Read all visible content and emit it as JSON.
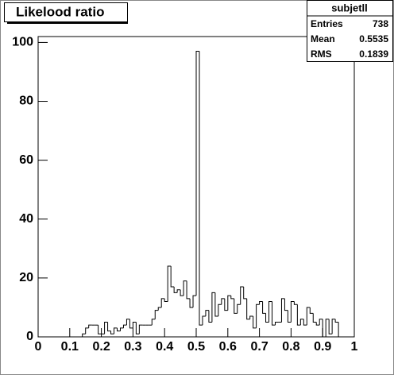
{
  "chart_data": {
    "type": "histogram",
    "title": "Likelood ratio",
    "bins": [
      0,
      0.01,
      0.02,
      0.03,
      0.04,
      0.05,
      0.06,
      0.07,
      0.08,
      0.09,
      0.1,
      0.11,
      0.12,
      0.13,
      0.14,
      0.15,
      0.16,
      0.17,
      0.18,
      0.19,
      0.2,
      0.21,
      0.22,
      0.23,
      0.24,
      0.25,
      0.26,
      0.27,
      0.28,
      0.29,
      0.3,
      0.31,
      0.32,
      0.33,
      0.34,
      0.35,
      0.36,
      0.37,
      0.38,
      0.39,
      0.4,
      0.41,
      0.42,
      0.43,
      0.44,
      0.45,
      0.46,
      0.47,
      0.48,
      0.49,
      0.5,
      0.51,
      0.52,
      0.53,
      0.54,
      0.55,
      0.56,
      0.57,
      0.58,
      0.59,
      0.6,
      0.61,
      0.62,
      0.63,
      0.64,
      0.65,
      0.66,
      0.67,
      0.68,
      0.69,
      0.7,
      0.71,
      0.72,
      0.73,
      0.74,
      0.75,
      0.76,
      0.77,
      0.78,
      0.79,
      0.8,
      0.81,
      0.82,
      0.83,
      0.84,
      0.85,
      0.86,
      0.87,
      0.88,
      0.89,
      0.9,
      0.91,
      0.92,
      0.93,
      0.94,
      0.95,
      0.96,
      0.97,
      0.98,
      0.99,
      1
    ],
    "values": [
      0,
      0,
      0,
      0,
      0,
      0,
      0,
      0,
      0,
      0,
      0,
      0,
      0,
      0,
      1,
      3,
      4,
      4,
      4,
      1,
      1,
      5,
      2,
      1,
      3,
      2,
      3,
      4,
      6,
      3,
      5,
      1,
      4,
      4,
      4,
      4,
      6,
      9,
      10,
      13,
      12,
      24,
      17,
      15,
      16,
      14,
      19,
      13,
      10,
      14,
      97,
      4,
      7,
      9,
      5,
      15,
      7,
      11,
      13,
      9,
      14,
      13,
      8,
      11,
      17,
      13,
      6,
      7,
      3,
      11,
      12,
      8,
      5,
      12,
      4,
      5,
      5,
      13,
      9,
      5,
      12,
      11,
      4,
      6,
      4,
      10,
      8,
      5,
      4,
      6,
      0,
      6,
      1,
      6,
      5,
      0,
      0,
      0,
      0,
      0
    ],
    "color": "#000000",
    "xlim": [
      0,
      1
    ],
    "xticks": [
      0,
      0.1,
      0.2,
      0.3,
      0.4,
      0.5,
      0.6,
      0.7,
      0.8,
      0.9,
      1
    ],
    "ylim": [
      0,
      102
    ],
    "yticks": [
      0,
      20,
      40,
      60,
      80,
      100
    ],
    "stats_box": {
      "title": "subjetll",
      "rows": [
        {
          "label": "Entries",
          "value": 738
        },
        {
          "label": "Mean",
          "value": 0.5535
        },
        {
          "label": "RMS",
          "value": 0.1839
        }
      ]
    }
  }
}
